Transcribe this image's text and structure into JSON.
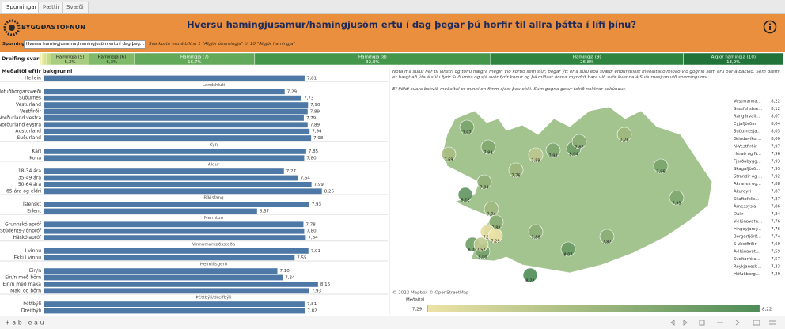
{
  "tabs": [
    "Spurningar",
    "Þættir",
    "Svæði"
  ],
  "header": {
    "logo": "BYGGÐASTOFNUN",
    "title": "Hversu hamingjusamur/hamingjusöm ertu í dag þegar þú horfir til allra þátta í lífi þínu?"
  },
  "filter": {
    "label": "Spurning:",
    "selected": "Hversu hamingjusamur/hamingjusöm ertu í dag þeg...",
    "note": "Svarkostir eru á bilinu 1 \"Algjör óhamingja\" til 10 \"Algjör hamingja\""
  },
  "chart_data": [
    {
      "type": "bar_100",
      "title": "Dreifing svara",
      "categories": [
        null,
        null,
        null,
        null,
        "Hamingja (5)",
        "Hamingja (6)",
        "Hamingja (7)",
        "Hamingja (8)",
        "Hamingja (9)",
        "Algjör hamingja (10)"
      ],
      "values": [
        0.3,
        0.3,
        0.4,
        0.6,
        5.3,
        6.3,
        16.7,
        32.8,
        26.8,
        13.9
      ],
      "value_labels": [
        null,
        null,
        null,
        null,
        "5,3%",
        "6,3%",
        "16,7%",
        "32,8%",
        "26,8%",
        "13,9%"
      ],
      "colors": [
        "#f3efb4",
        "#e6eaa2",
        "#d6e393",
        "#c3da86",
        "#a9cd80",
        "#7fba6a",
        "#63a95a",
        "#43964a",
        "#2f8540",
        "#217339"
      ]
    },
    {
      "type": "bar",
      "title": "Meðaltöl eftir bakgrunni",
      "xlim": [
        1,
        10
      ],
      "color": "#4e79a7",
      "groups": [
        {
          "categories": [
            "Heildin"
          ],
          "values": [
            7.81
          ],
          "value_labels": [
            "7,81"
          ]
        },
        {
          "name": "Landshluti",
          "categories": [
            "Höfuðborgarsvæði",
            "Suðurnes",
            "Vesturland",
            "Vestfirðir",
            "Norðurland vestra",
            "Norðurland eystra",
            "Austurland",
            "Suðurland"
          ],
          "values": [
            7.29,
            7.73,
            7.9,
            7.89,
            7.79,
            7.89,
            7.94,
            7.98
          ],
          "value_labels": [
            "7,29",
            "7,73",
            "7,90",
            "7,89",
            "7,79",
            "7,89",
            "7,94",
            "7,98"
          ]
        },
        {
          "name": "Kyn",
          "categories": [
            "Karl",
            "Kona"
          ],
          "values": [
            7.85,
            7.8
          ],
          "value_labels": [
            "7,85",
            "7,80"
          ]
        },
        {
          "name": "Aldur",
          "categories": [
            "18-34 ára",
            "35-49 ára",
            "50-64 ára",
            "65 ára og eldri"
          ],
          "values": [
            7.27,
            7.64,
            7.99,
            8.26
          ],
          "value_labels": [
            "7,27",
            "7,64",
            "7,99",
            "8,26"
          ]
        },
        {
          "name": "Ríkisfang",
          "categories": [
            "Íslenskt",
            "Erlent"
          ],
          "values": [
            7.93,
            6.57
          ],
          "value_labels": [
            "7,93",
            "6,57"
          ]
        },
        {
          "name": "Menntun",
          "categories": [
            "Grunnskólapróf",
            "Stúdents-/iðnpróf",
            "Háskólapróf"
          ],
          "values": [
            7.78,
            7.8,
            7.84
          ],
          "value_labels": [
            "7,78",
            "7,80",
            "7,84"
          ]
        },
        {
          "name": "Vinnumarkaðsstaða",
          "categories": [
            "Í vinnu",
            "Ekki í vinnu"
          ],
          "values": [
            7.91,
            7.55
          ],
          "value_labels": [
            "7,91",
            "7,55"
          ]
        },
        {
          "name": "Heimilisgerð",
          "categories": [
            "Ein/n",
            "Ein/n með börn",
            "Ein/n með maka",
            "Maki og börn"
          ],
          "values": [
            7.1,
            7.24,
            8.16,
            7.93
          ],
          "value_labels": [
            "7,10",
            "7,24",
            "8,16",
            "7,93"
          ]
        },
        {
          "name": "Þéttbýli/dreifbýli",
          "categories": [
            "Þéttbýli",
            "Dreifbýli"
          ],
          "values": [
            7.81,
            7.82
          ],
          "value_labels": [
            "7,81",
            "7,82"
          ]
        }
      ]
    },
    {
      "type": "map",
      "notes": [
        "Nota má súlur hér til vinstri og töflu hægra megin við kortið sem síur, þegar ýtt er á súlu eða svæði endurstillist meðaltalið miðað við gögnin sem eru þar á bakvið. Sem dæmi er hægt að ýta á súlu fyrir Suðurnes og sjá svör fyrir konur og þá miðast önnur myndrit bara við svör kvenna á Suðurnesjum við spurningunni.",
        "Ef fjöldi svara bakvið meðaltal er minni en fimm sjást þau ekki. Sum gagna getur tekið nokkrar sekúndur."
      ],
      "credit": "© 2022 Mapbox © OpenStreetMap",
      "legend_title": "Meðaltal",
      "colorlim": [
        {
          "value": 7.29,
          "label": "7,29"
        },
        {
          "value": 8.22,
          "label": "8,22"
        }
      ],
      "colors": [
        "#eee3a6",
        "#4f8c57"
      ],
      "categories": [
        "Vestmanna...",
        "Snæfellsbæ...",
        "Rangárvall...",
        "Eyjafjörður",
        "Suðurnesja...",
        "Grindavíkur...",
        "N-Vestfirðir",
        "Hérað og N...",
        "Fjarðabygg...",
        "Skagafjörð...",
        "Strandir og ...",
        "Akranes og...",
        "Akureyri",
        "Skaftafells...",
        "Árnessýsla",
        "Dalir",
        "V-Húnavatn...",
        "Þingeyjarsý...",
        "Borgarfjörð...",
        "S-Vestfirðir",
        "A-Húnavat...",
        "Sveitarféla...",
        "Reykjanesb...",
        "Höfuðborg..."
      ],
      "values": [
        8.22,
        8.12,
        8.07,
        8.04,
        8.03,
        8.0,
        7.97,
        7.96,
        7.93,
        7.93,
        7.92,
        7.88,
        7.87,
        7.87,
        7.86,
        7.84,
        7.76,
        7.76,
        7.74,
        7.69,
        7.59,
        7.57,
        7.33,
        7.29
      ],
      "value_labels": [
        "8,22",
        "8,12",
        "8,07",
        "8,04",
        "8,03",
        "8,00",
        "7,97",
        "7,96",
        "7,93",
        "7,93",
        "7,92",
        "7,88",
        "7,87",
        "7,87",
        "7,86",
        "7,84",
        "7,76",
        "7,76",
        "7,74",
        "7,69",
        "7,59",
        "7,57",
        "7,33",
        "7,29"
      ]
    }
  ],
  "footer": {
    "logo": "+ a b | e a u"
  }
}
